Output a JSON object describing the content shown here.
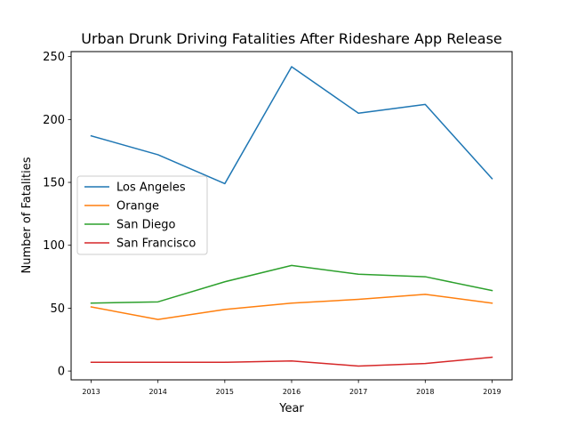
{
  "chart_data": {
    "type": "line",
    "title": "Urban Drunk Driving Fatalities After Rideshare App Release",
    "xlabel": "Year",
    "ylabel": "Number of Fatalities",
    "x": [
      2013,
      2014,
      2015,
      2016,
      2017,
      2018,
      2019
    ],
    "x_tick_labels": [
      "2013",
      "2014",
      "2015",
      "2016",
      "2017",
      "2018",
      "2019"
    ],
    "yticks": [
      0,
      50,
      100,
      150,
      200,
      250
    ],
    "y_tick_labels": [
      "0",
      "50",
      "100",
      "150",
      "200",
      "250"
    ],
    "xlim": [
      2012.7,
      2019.3
    ],
    "ylim": [
      -7,
      254
    ],
    "grid": false,
    "legend_position": "center-left",
    "series": [
      {
        "name": "Los Angeles",
        "color": "#1f77b4",
        "values": [
          187,
          172,
          149,
          242,
          205,
          212,
          153
        ]
      },
      {
        "name": "Orange",
        "color": "#ff7f0e",
        "values": [
          51,
          41,
          49,
          54,
          57,
          61,
          54
        ]
      },
      {
        "name": "San Diego",
        "color": "#2ca02c",
        "values": [
          54,
          55,
          71,
          84,
          77,
          75,
          64
        ]
      },
      {
        "name": "San Francisco",
        "color": "#d62728",
        "values": [
          7,
          7,
          7,
          8,
          4,
          6,
          11
        ]
      }
    ]
  }
}
